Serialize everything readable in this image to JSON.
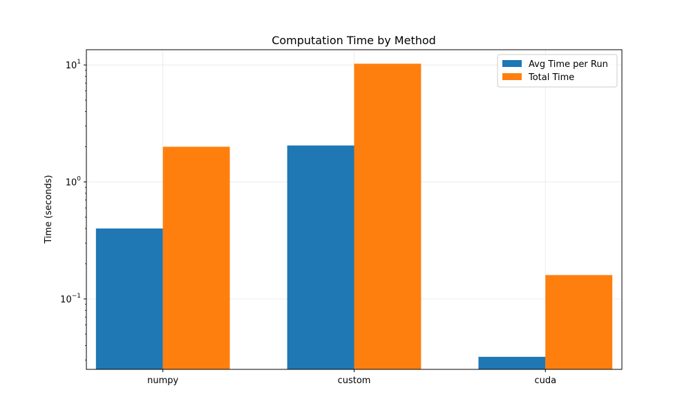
{
  "chart_data": {
    "type": "bar",
    "title": "Computation Time by Method",
    "xlabel": "",
    "ylabel": "Time (seconds)",
    "yscale": "log",
    "ylim": [
      0.025,
      13.5
    ],
    "grid": true,
    "legend_position": "top-right",
    "categories": [
      "numpy",
      "custom",
      "cuda"
    ],
    "series": [
      {
        "name": "Avg Time per Run",
        "color": "#1f77b4",
        "values": [
          0.4,
          2.05,
          0.032
        ]
      },
      {
        "name": "Total Time",
        "color": "#ff7f0e",
        "values": [
          2.0,
          10.25,
          0.16
        ]
      }
    ],
    "yticks": [
      {
        "value": 0.1,
        "base": "10",
        "exp": "−1"
      },
      {
        "value": 1,
        "base": "10",
        "exp": "0"
      },
      {
        "value": 10,
        "base": "10",
        "exp": "1"
      }
    ]
  }
}
